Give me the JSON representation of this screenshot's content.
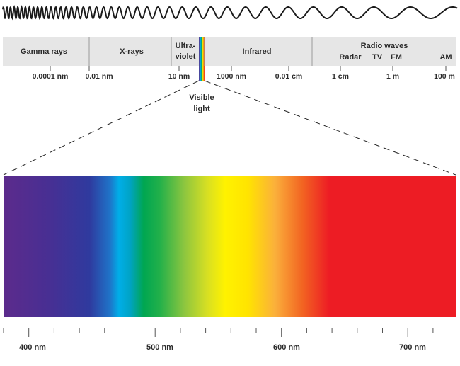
{
  "bands": [
    {
      "id": "gamma",
      "label": "Gamma rays"
    },
    {
      "id": "xray",
      "label": "X-rays"
    },
    {
      "id": "uv",
      "label_line1": "Ultra-",
      "label_line2": "violet"
    },
    {
      "id": "ir",
      "label": "Infrared"
    },
    {
      "id": "radio",
      "label": "Radio waves",
      "sub": [
        "Radar",
        "TV",
        "FM",
        "AM"
      ]
    }
  ],
  "scale_ticks": [
    "0.0001 nm",
    "0.01 nm",
    "10 nm",
    "1000 nm",
    "0.01 cm",
    "1 cm",
    "1 m",
    "100 m"
  ],
  "visible": {
    "line1": "Visible",
    "line2": "light"
  },
  "nm_ticks": [
    "400 nm",
    "500 nm",
    "600 nm",
    "700 nm"
  ],
  "colors": {
    "band_bg": "#e6e6e6",
    "wave": "#1a1a1a",
    "spectrum_stops": [
      "#5a2a8a",
      "#4a2f95",
      "#34369a",
      "#2f3c9f",
      "#00a9e6",
      "#00b050",
      "#9acd32",
      "#fff200",
      "#ffd400",
      "#f7941d",
      "#ee3a24",
      "#ed1c24"
    ]
  }
}
